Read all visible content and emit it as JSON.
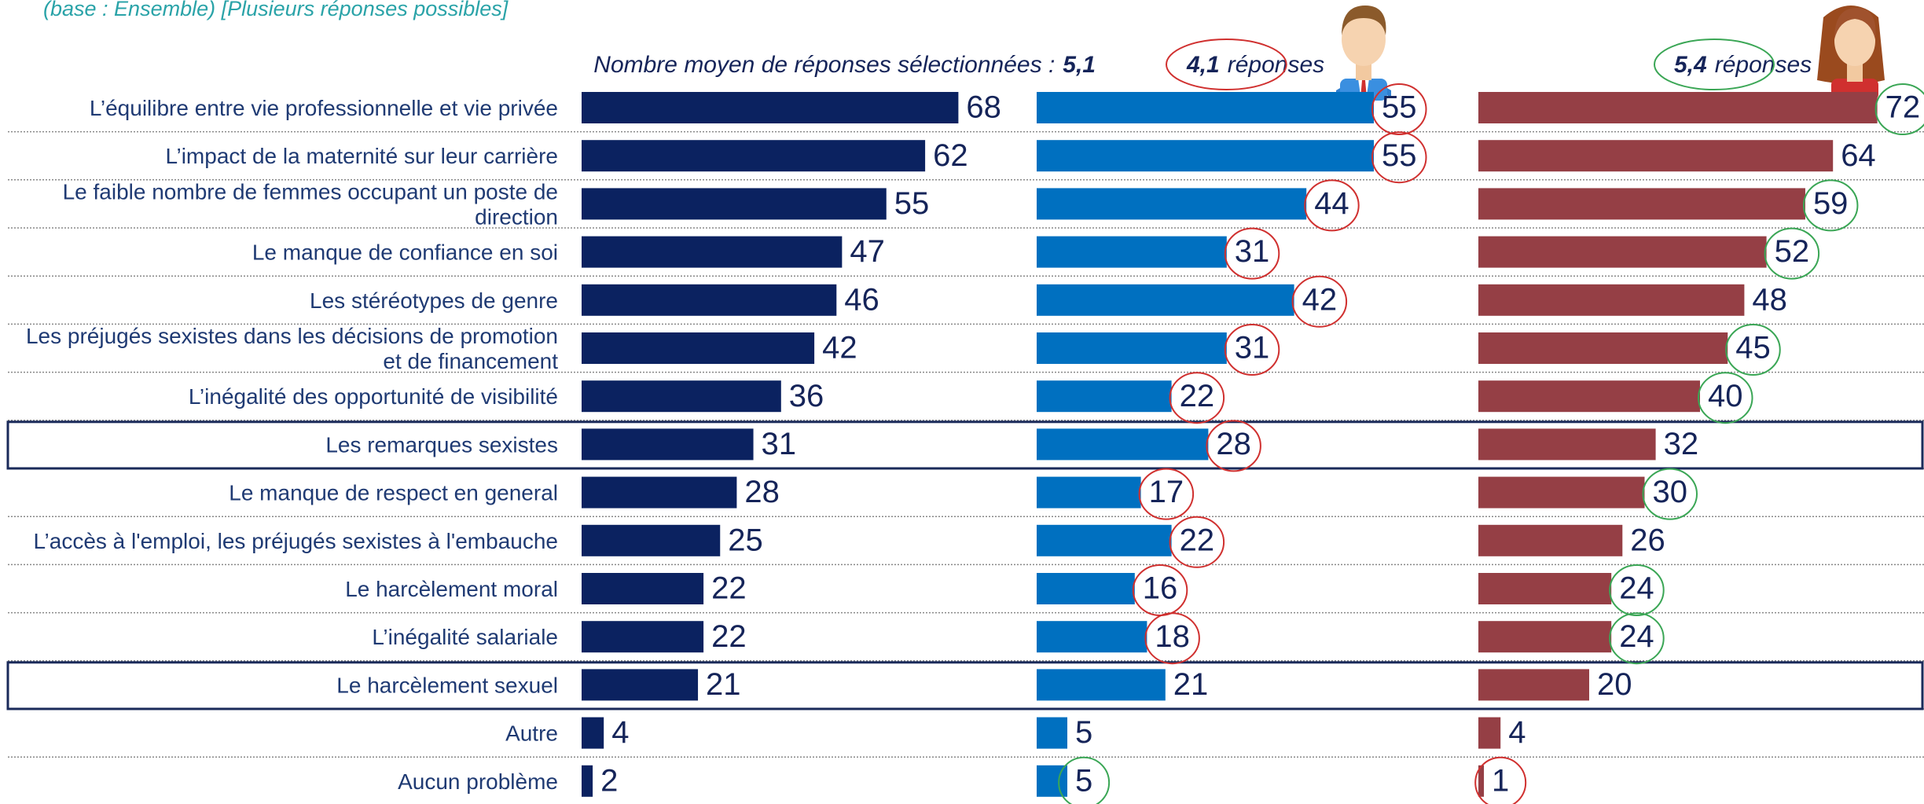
{
  "chart_data": {
    "type": "bar",
    "orientation": "horizontal",
    "subtitle": "(base : Ensemble) [Plusieurs réponses possibles]",
    "average_label": "Nombre moyen de réponses sélectionnées :",
    "average_value": "5,1",
    "annotations": [
      {
        "value": "4,1",
        "text": "réponses",
        "circle_color": "#d0302f"
      },
      {
        "value": "5,4",
        "text": "réponses",
        "circle_color": "#3aa655"
      }
    ],
    "categories": [
      "L’équilibre entre vie professionnelle et vie privée",
      "L’impact de la maternité sur leur carrière",
      [
        "Le faible nombre de femmes occupant un poste de",
        "direction"
      ],
      "Le manque de confiance en soi",
      "Les stéréotypes de genre",
      [
        "Les préjugés sexistes dans les décisions de promotion",
        "et de financement"
      ],
      "L’inégalité des opportunité de visibilité",
      "Les remarques sexistes",
      "Le manque de respect en general",
      "L’accès à l'emploi, les préjugés sexistes à l'embauche",
      "Le harcèlement moral",
      "L’inégalité salariale",
      "Le harcèlement sexuel",
      "Autre",
      "Aucun problème"
    ],
    "boxed_rows": [
      7,
      12
    ],
    "series": [
      {
        "color": "#0b2260",
        "values": [
          68,
          62,
          55,
          47,
          46,
          42,
          36,
          31,
          28,
          25,
          22,
          22,
          21,
          4,
          2
        ],
        "circles": [
          null,
          null,
          null,
          null,
          null,
          null,
          null,
          null,
          null,
          null,
          null,
          null,
          null,
          null,
          null
        ]
      },
      {
        "color": "#0070c0",
        "values": [
          55,
          55,
          44,
          31,
          42,
          31,
          22,
          28,
          17,
          22,
          16,
          18,
          21,
          5,
          5
        ],
        "circles": [
          "#d0302f",
          "#d0302f",
          "#d0302f",
          "#d0302f",
          "#d0302f",
          "#d0302f",
          "#d0302f",
          "#d0302f",
          "#d0302f",
          "#d0302f",
          "#d0302f",
          "#d0302f",
          null,
          null,
          "#3aa655"
        ]
      },
      {
        "color": "#953f45",
        "values": [
          72,
          64,
          59,
          52,
          48,
          45,
          40,
          32,
          30,
          26,
          24,
          24,
          20,
          4,
          1
        ],
        "circles": [
          "#3aa655",
          null,
          "#3aa655",
          "#3aa655",
          null,
          "#3aa655",
          "#3aa655",
          null,
          "#3aa655",
          null,
          "#3aa655",
          "#3aa655",
          null,
          null,
          "#d0302f"
        ]
      }
    ]
  }
}
